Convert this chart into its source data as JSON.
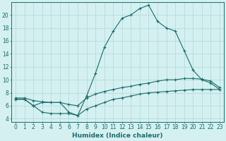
{
  "line1_x": [
    0,
    1,
    2,
    3,
    4,
    5,
    6,
    7,
    8,
    9,
    10,
    11,
    12,
    13,
    14,
    15,
    16,
    17,
    18,
    19,
    20,
    21,
    22,
    23
  ],
  "line1_y": [
    7,
    7,
    6,
    6.5,
    6.5,
    6.5,
    5,
    4.5,
    7.5,
    11,
    15,
    17.5,
    19.5,
    20,
    21,
    21.5,
    19,
    18,
    17.5,
    14.5,
    11.5,
    10,
    9.5,
    8.5
  ],
  "line2_x": [
    0,
    1,
    2,
    3,
    4,
    5,
    6,
    7,
    8,
    9,
    10,
    11,
    12,
    13,
    14,
    15,
    16,
    17,
    18,
    19,
    20,
    21,
    22,
    23
  ],
  "line2_y": [
    7.2,
    7.2,
    6.8,
    6.6,
    6.5,
    6.5,
    6.2,
    6.0,
    7.2,
    7.8,
    8.2,
    8.5,
    8.8,
    9.0,
    9.3,
    9.5,
    9.8,
    10.0,
    10.0,
    10.2,
    10.2,
    10.1,
    9.8,
    8.8
  ],
  "line3_x": [
    0,
    1,
    2,
    3,
    4,
    5,
    6,
    7,
    8,
    9,
    10,
    11,
    12,
    13,
    14,
    15,
    16,
    17,
    18,
    19,
    20,
    21,
    22,
    23
  ],
  "line3_y": [
    7.0,
    7.0,
    6.0,
    5.0,
    4.8,
    4.8,
    4.8,
    4.5,
    5.5,
    6.0,
    6.5,
    7.0,
    7.2,
    7.5,
    7.8,
    8.0,
    8.1,
    8.2,
    8.3,
    8.4,
    8.5,
    8.5,
    8.5,
    8.5
  ],
  "line_color": "#1a6b6b",
  "marker": "+",
  "bg_color": "#d4f0f0",
  "grid_color": "#b0d8d8",
  "xlabel": "Humidex (Indice chaleur)",
  "ylim": [
    3.5,
    22
  ],
  "xlim": [
    -0.5,
    23.5
  ],
  "yticks": [
    4,
    6,
    8,
    10,
    12,
    14,
    16,
    18,
    20
  ],
  "xticks": [
    0,
    1,
    2,
    3,
    4,
    5,
    6,
    7,
    8,
    9,
    10,
    11,
    12,
    13,
    14,
    15,
    16,
    17,
    18,
    19,
    20,
    21,
    22,
    23
  ],
  "label_fontsize": 6.5,
  "tick_fontsize": 5.5
}
